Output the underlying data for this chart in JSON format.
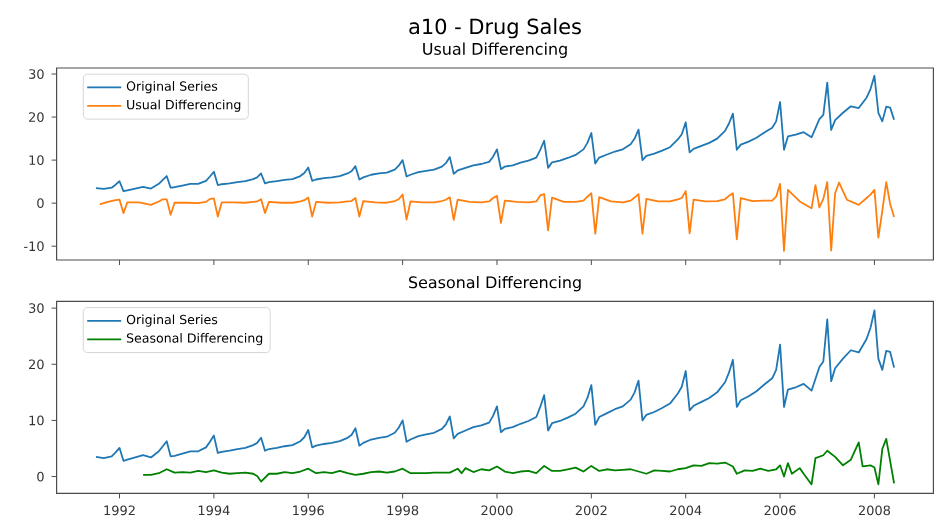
{
  "chart_data": [
    {
      "type": "line",
      "title": "a10 - Drug Sales",
      "subtitle": "Usual Differencing",
      "xlim": [
        "1990-09",
        "2009-04"
      ],
      "ylim": [
        -13.2,
        31.4
      ],
      "xticks": [
        "1992",
        "1994",
        "1996",
        "1998",
        "2000",
        "2002",
        "2004",
        "2006",
        "2008"
      ],
      "yticks": [
        -10,
        0,
        10,
        20,
        30
      ],
      "tick_labels": "y",
      "legend": "top left",
      "series": [
        {
          "name": "Original Series",
          "color": "#1f77b4",
          "x": [
            "1991-07",
            "1991-09",
            "1991-11",
            "1991-12",
            "1992-01",
            "1992-02",
            "1992-03",
            "1992-05",
            "1992-07",
            "1992-09",
            "1992-11",
            "1992-12",
            "1993-01",
            "1993-02",
            "1993-03",
            "1993-05",
            "1993-07",
            "1993-09",
            "1993-11",
            "1993-12",
            "1994-01",
            "1994-02",
            "1994-03",
            "1994-05",
            "1994-07",
            "1994-09",
            "1994-11",
            "1994-12",
            "1995-01",
            "1995-02",
            "1995-03",
            "1995-05",
            "1995-07",
            "1995-09",
            "1995-11",
            "1995-12",
            "1996-01",
            "1996-02",
            "1996-03",
            "1996-05",
            "1996-07",
            "1996-09",
            "1996-11",
            "1996-12",
            "1997-01",
            "1997-02",
            "1997-03",
            "1997-05",
            "1997-07",
            "1997-09",
            "1997-11",
            "1997-12",
            "1998-01",
            "1998-02",
            "1998-03",
            "1998-05",
            "1998-07",
            "1998-09",
            "1998-11",
            "1998-12",
            "1999-01",
            "1999-02",
            "1999-03",
            "1999-05",
            "1999-07",
            "1999-09",
            "1999-11",
            "1999-12",
            "2000-01",
            "2000-02",
            "2000-03",
            "2000-05",
            "2000-07",
            "2000-09",
            "2000-11",
            "2000-12",
            "2001-01",
            "2001-02",
            "2001-03",
            "2001-05",
            "2001-07",
            "2001-09",
            "2001-11",
            "2001-12",
            "2002-01",
            "2002-02",
            "2002-03",
            "2002-05",
            "2002-07",
            "2002-09",
            "2002-11",
            "2002-12",
            "2003-01",
            "2003-02",
            "2003-03",
            "2003-05",
            "2003-07",
            "2003-09",
            "2003-11",
            "2003-12",
            "2004-01",
            "2004-02",
            "2004-03",
            "2004-05",
            "2004-07",
            "2004-09",
            "2004-11",
            "2004-12",
            "2005-01",
            "2005-02",
            "2005-03",
            "2005-05",
            "2005-07",
            "2005-09",
            "2005-11",
            "2005-12",
            "2006-01",
            "2006-02",
            "2006-03",
            "2006-05",
            "2006-07",
            "2006-09",
            "2006-11",
            "2006-12",
            "2007-01",
            "2007-02",
            "2007-03",
            "2007-05",
            "2007-07",
            "2007-09",
            "2007-11",
            "2007-12",
            "2008-01",
            "2008-02",
            "2008-03",
            "2008-04",
            "2008-05",
            "2008-06"
          ],
          "values": [
            3.5,
            3.3,
            3.6,
            4.3,
            5.1,
            2.8,
            3.0,
            3.4,
            3.8,
            3.4,
            4.5,
            5.4,
            6.3,
            3.6,
            3.7,
            4.1,
            4.5,
            4.5,
            5.2,
            6.2,
            7.3,
            4.2,
            4.4,
            4.6,
            4.9,
            5.1,
            5.6,
            6.0,
            6.9,
            4.6,
            4.9,
            5.1,
            5.4,
            5.6,
            6.3,
            7.0,
            8.3,
            5.2,
            5.5,
            5.8,
            6.0,
            6.3,
            6.9,
            7.4,
            8.6,
            5.5,
            6.0,
            6.6,
            6.9,
            7.1,
            7.8,
            8.7,
            10.0,
            6.2,
            6.6,
            7.2,
            7.5,
            7.8,
            8.5,
            9.3,
            10.7,
            6.8,
            7.6,
            8.2,
            8.8,
            9.1,
            9.6,
            10.8,
            12.5,
            7.9,
            8.5,
            8.8,
            9.4,
            9.9,
            10.6,
            12.4,
            14.5,
            8.2,
            9.5,
            9.9,
            10.5,
            11.2,
            12.5,
            14.0,
            16.3,
            9.2,
            10.6,
            11.3,
            12.0,
            12.5,
            13.7,
            15.0,
            17.1,
            10.0,
            11.0,
            11.5,
            12.2,
            13.0,
            14.8,
            16.0,
            18.8,
            11.8,
            12.6,
            13.3,
            14.0,
            15.0,
            16.8,
            18.5,
            20.8,
            12.4,
            13.6,
            14.3,
            15.2,
            16.4,
            17.5,
            19.0,
            23.5,
            12.4,
            15.5,
            15.9,
            16.5,
            15.3,
            19.5,
            20.5,
            28.0,
            17.0,
            19.3,
            21.0,
            22.5,
            22.1,
            24.5,
            26.5,
            29.6,
            21.0,
            19.0,
            22.4,
            22.2,
            19.4
          ]
        },
        {
          "name": "Usual Differencing",
          "color": "#ff7f0e",
          "x": [
            "1991-08",
            "1991-10",
            "1991-12",
            "1992-01",
            "1992-02",
            "1992-03",
            "1992-06",
            "1992-09",
            "1992-11",
            "1992-12",
            "1993-01",
            "1993-02",
            "1993-03",
            "1993-06",
            "1993-09",
            "1993-11",
            "1993-12",
            "1994-01",
            "1994-02",
            "1994-03",
            "1994-06",
            "1994-09",
            "1994-11",
            "1994-12",
            "1995-01",
            "1995-02",
            "1995-03",
            "1995-06",
            "1995-09",
            "1995-11",
            "1995-12",
            "1996-01",
            "1996-02",
            "1996-03",
            "1996-06",
            "1996-09",
            "1996-11",
            "1996-12",
            "1997-01",
            "1997-02",
            "1997-03",
            "1997-06",
            "1997-09",
            "1997-11",
            "1997-12",
            "1998-01",
            "1998-02",
            "1998-03",
            "1998-06",
            "1998-09",
            "1998-11",
            "1998-12",
            "1999-01",
            "1999-02",
            "1999-03",
            "1999-06",
            "1999-09",
            "1999-11",
            "1999-12",
            "2000-01",
            "2000-02",
            "2000-03",
            "2000-06",
            "2000-09",
            "2000-11",
            "2000-12",
            "2001-01",
            "2001-02",
            "2001-03",
            "2001-06",
            "2001-09",
            "2001-11",
            "2001-12",
            "2002-01",
            "2002-02",
            "2002-03",
            "2002-06",
            "2002-09",
            "2002-11",
            "2002-12",
            "2003-01",
            "2003-02",
            "2003-03",
            "2003-06",
            "2003-09",
            "2003-11",
            "2003-12",
            "2004-01",
            "2004-02",
            "2004-03",
            "2004-06",
            "2004-09",
            "2004-11",
            "2004-12",
            "2005-01",
            "2005-02",
            "2005-03",
            "2005-06",
            "2005-09",
            "2005-11",
            "2005-12",
            "2006-01",
            "2006-02",
            "2006-03",
            "2006-06",
            "2006-09",
            "2006-10",
            "2006-11",
            "2006-12",
            "2007-01",
            "2007-02",
            "2007-03",
            "2007-04",
            "2007-06",
            "2007-09",
            "2007-11",
            "2007-12",
            "2008-01",
            "2008-02",
            "2008-03",
            "2008-04",
            "2008-05",
            "2008-06"
          ],
          "values": [
            -0.3,
            0.3,
            0.7,
            0.8,
            -2.3,
            0.2,
            0.2,
            -0.4,
            0.4,
            0.9,
            0.9,
            -2.7,
            0.1,
            0.1,
            0.0,
            0.3,
            1.0,
            1.1,
            -3.1,
            0.2,
            0.2,
            0.1,
            0.3,
            0.4,
            0.9,
            -2.3,
            0.3,
            0.1,
            0.1,
            0.4,
            0.7,
            1.3,
            -3.1,
            0.3,
            0.1,
            0.2,
            0.4,
            0.5,
            1.2,
            -3.1,
            0.5,
            0.2,
            0.1,
            0.5,
            0.9,
            2.0,
            -3.8,
            0.4,
            0.2,
            0.2,
            0.5,
            0.8,
            1.4,
            -3.9,
            0.8,
            0.3,
            0.2,
            0.4,
            1.2,
            1.7,
            -4.6,
            0.6,
            0.3,
            0.2,
            0.4,
            1.8,
            2.1,
            -6.3,
            1.3,
            0.3,
            0.3,
            0.6,
            1.5,
            2.3,
            -7.1,
            1.4,
            0.4,
            0.2,
            0.6,
            1.3,
            2.1,
            -7.1,
            1.0,
            0.4,
            0.4,
            0.9,
            1.2,
            2.8,
            -7.0,
            0.8,
            0.4,
            0.5,
            0.9,
            1.7,
            2.3,
            -8.4,
            1.2,
            0.5,
            0.6,
            0.6,
            1.5,
            4.5,
            -11.1,
            3.1,
            0.4,
            -1.2,
            4.2,
            -1.0,
            1.0,
            4.9,
            -11.0,
            2.3,
            4.8,
            0.8,
            -0.4,
            1.2,
            2.0,
            3.1,
            -8.0,
            -1.8,
            4.9,
            -0.2,
            -3.2
          ]
        }
      ]
    },
    {
      "type": "line",
      "title": "Seasonal Differencing",
      "xlim": [
        "1990-09",
        "2009-04"
      ],
      "ylim": [
        -3.0,
        31.2
      ],
      "xticks": [
        "1992",
        "1994",
        "1996",
        "1998",
        "2000",
        "2002",
        "2004",
        "2006",
        "2008"
      ],
      "yticks": [
        0,
        10,
        20,
        30
      ],
      "legend": "top left",
      "series": [
        {
          "name": "Original Series",
          "color": "#1f77b4",
          "x": [
            "1991-07",
            "1991-09",
            "1991-11",
            "1991-12",
            "1992-01",
            "1992-02",
            "1992-03",
            "1992-05",
            "1992-07",
            "1992-09",
            "1992-11",
            "1992-12",
            "1993-01",
            "1993-02",
            "1993-03",
            "1993-05",
            "1993-07",
            "1993-09",
            "1993-11",
            "1993-12",
            "1994-01",
            "1994-02",
            "1994-03",
            "1994-05",
            "1994-07",
            "1994-09",
            "1994-11",
            "1994-12",
            "1995-01",
            "1995-02",
            "1995-03",
            "1995-05",
            "1995-07",
            "1995-09",
            "1995-11",
            "1995-12",
            "1996-01",
            "1996-02",
            "1996-03",
            "1996-05",
            "1996-07",
            "1996-09",
            "1996-11",
            "1996-12",
            "1997-01",
            "1997-02",
            "1997-03",
            "1997-05",
            "1997-07",
            "1997-09",
            "1997-11",
            "1997-12",
            "1998-01",
            "1998-02",
            "1998-03",
            "1998-05",
            "1998-07",
            "1998-09",
            "1998-11",
            "1998-12",
            "1999-01",
            "1999-02",
            "1999-03",
            "1999-05",
            "1999-07",
            "1999-09",
            "1999-11",
            "1999-12",
            "2000-01",
            "2000-02",
            "2000-03",
            "2000-05",
            "2000-07",
            "2000-09",
            "2000-11",
            "2000-12",
            "2001-01",
            "2001-02",
            "2001-03",
            "2001-05",
            "2001-07",
            "2001-09",
            "2001-11",
            "2001-12",
            "2002-01",
            "2002-02",
            "2002-03",
            "2002-05",
            "2002-07",
            "2002-09",
            "2002-11",
            "2002-12",
            "2003-01",
            "2003-02",
            "2003-03",
            "2003-05",
            "2003-07",
            "2003-09",
            "2003-11",
            "2003-12",
            "2004-01",
            "2004-02",
            "2004-03",
            "2004-05",
            "2004-07",
            "2004-09",
            "2004-11",
            "2004-12",
            "2005-01",
            "2005-02",
            "2005-03",
            "2005-05",
            "2005-07",
            "2005-09",
            "2005-11",
            "2005-12",
            "2006-01",
            "2006-02",
            "2006-03",
            "2006-05",
            "2006-07",
            "2006-09",
            "2006-11",
            "2006-12",
            "2007-01",
            "2007-02",
            "2007-03",
            "2007-05",
            "2007-07",
            "2007-09",
            "2007-11",
            "2007-12",
            "2008-01",
            "2008-02",
            "2008-03",
            "2008-04",
            "2008-05",
            "2008-06"
          ],
          "values": [
            3.5,
            3.3,
            3.6,
            4.3,
            5.1,
            2.8,
            3.0,
            3.4,
            3.8,
            3.4,
            4.5,
            5.4,
            6.3,
            3.6,
            3.7,
            4.1,
            4.5,
            4.5,
            5.2,
            6.2,
            7.3,
            4.2,
            4.4,
            4.6,
            4.9,
            5.1,
            5.6,
            6.0,
            6.9,
            4.6,
            4.9,
            5.1,
            5.4,
            5.6,
            6.3,
            7.0,
            8.3,
            5.2,
            5.5,
            5.8,
            6.0,
            6.3,
            6.9,
            7.4,
            8.6,
            5.5,
            6.0,
            6.6,
            6.9,
            7.1,
            7.8,
            8.7,
            10.0,
            6.2,
            6.6,
            7.2,
            7.5,
            7.8,
            8.5,
            9.3,
            10.7,
            6.8,
            7.6,
            8.2,
            8.8,
            9.1,
            9.6,
            10.8,
            12.5,
            7.9,
            8.5,
            8.8,
            9.4,
            9.9,
            10.6,
            12.4,
            14.5,
            8.2,
            9.5,
            9.9,
            10.5,
            11.2,
            12.5,
            14.0,
            16.3,
            9.2,
            10.6,
            11.3,
            12.0,
            12.5,
            13.7,
            15.0,
            17.1,
            10.0,
            11.0,
            11.5,
            12.2,
            13.0,
            14.8,
            16.0,
            18.8,
            11.8,
            12.6,
            13.3,
            14.0,
            15.0,
            16.8,
            18.5,
            20.8,
            12.4,
            13.6,
            14.3,
            15.2,
            16.4,
            17.5,
            19.0,
            23.5,
            12.4,
            15.5,
            15.9,
            16.5,
            15.3,
            19.5,
            20.5,
            28.0,
            17.0,
            19.3,
            21.0,
            22.5,
            22.1,
            24.5,
            26.5,
            29.6,
            21.0,
            19.0,
            22.4,
            22.2,
            19.4
          ]
        },
        {
          "name": "Seasonal Differencing",
          "color": "#008000",
          "x": [
            "1992-07",
            "1992-09",
            "1992-11",
            "1993-01",
            "1993-03",
            "1993-05",
            "1993-07",
            "1993-09",
            "1993-11",
            "1994-01",
            "1994-03",
            "1994-05",
            "1994-07",
            "1994-09",
            "1994-11",
            "1994-12",
            "1995-01",
            "1995-03",
            "1995-05",
            "1995-07",
            "1995-09",
            "1995-11",
            "1996-01",
            "1996-03",
            "1996-05",
            "1996-07",
            "1996-09",
            "1996-11",
            "1997-01",
            "1997-03",
            "1997-05",
            "1997-07",
            "1997-09",
            "1997-11",
            "1998-01",
            "1998-03",
            "1998-05",
            "1998-07",
            "1998-09",
            "1998-11",
            "1999-01",
            "1999-03",
            "1999-04",
            "1999-05",
            "1999-07",
            "1999-09",
            "1999-11",
            "2000-01",
            "2000-03",
            "2000-05",
            "2000-07",
            "2000-09",
            "2000-11",
            "2001-01",
            "2001-03",
            "2001-05",
            "2001-07",
            "2001-09",
            "2001-11",
            "2002-01",
            "2002-03",
            "2002-05",
            "2002-07",
            "2002-09",
            "2002-11",
            "2003-01",
            "2003-03",
            "2003-05",
            "2003-07",
            "2003-09",
            "2003-11",
            "2004-01",
            "2004-03",
            "2004-05",
            "2004-07",
            "2004-09",
            "2004-11",
            "2005-01",
            "2005-02",
            "2005-04",
            "2005-06",
            "2005-08",
            "2005-10",
            "2005-12",
            "2006-01",
            "2006-02",
            "2006-03",
            "2006-04",
            "2006-06",
            "2006-07",
            "2006-09",
            "2006-10",
            "2006-12",
            "2007-01",
            "2007-03",
            "2007-05",
            "2007-07",
            "2007-09",
            "2007-10",
            "2007-12",
            "2008-01",
            "2008-02",
            "2008-03",
            "2008-04",
            "2008-06"
          ],
          "values": [
            0.3,
            0.3,
            0.6,
            1.3,
            0.7,
            0.8,
            0.7,
            1.0,
            0.8,
            1.1,
            0.7,
            0.5,
            0.6,
            0.7,
            0.5,
            0.1,
            -0.9,
            0.5,
            0.5,
            0.8,
            0.6,
            0.9,
            1.4,
            0.6,
            0.8,
            0.6,
            1.0,
            0.6,
            0.3,
            0.5,
            0.8,
            0.9,
            0.7,
            0.9,
            1.4,
            0.6,
            0.6,
            0.6,
            0.7,
            0.7,
            0.7,
            1.4,
            0.6,
            1.5,
            0.8,
            1.3,
            1.1,
            1.8,
            0.9,
            0.6,
            0.9,
            1.0,
            0.6,
            1.9,
            1.0,
            1.0,
            1.3,
            1.6,
            0.9,
            1.9,
            1.0,
            1.3,
            1.1,
            1.2,
            1.3,
            0.9,
            0.5,
            1.1,
            1.0,
            0.9,
            1.3,
            1.5,
            2.0,
            1.9,
            2.4,
            2.3,
            2.5,
            1.8,
            0.5,
            1.1,
            1.0,
            1.4,
            1.0,
            1.3,
            2.0,
            0.0,
            2.4,
            0.5,
            1.5,
            0.5,
            -1.4,
            3.3,
            3.8,
            4.6,
            3.5,
            2.0,
            3.0,
            6.1,
            1.8,
            2.0,
            1.6,
            -1.4,
            4.9,
            6.7,
            -1.2
          ]
        }
      ]
    }
  ]
}
